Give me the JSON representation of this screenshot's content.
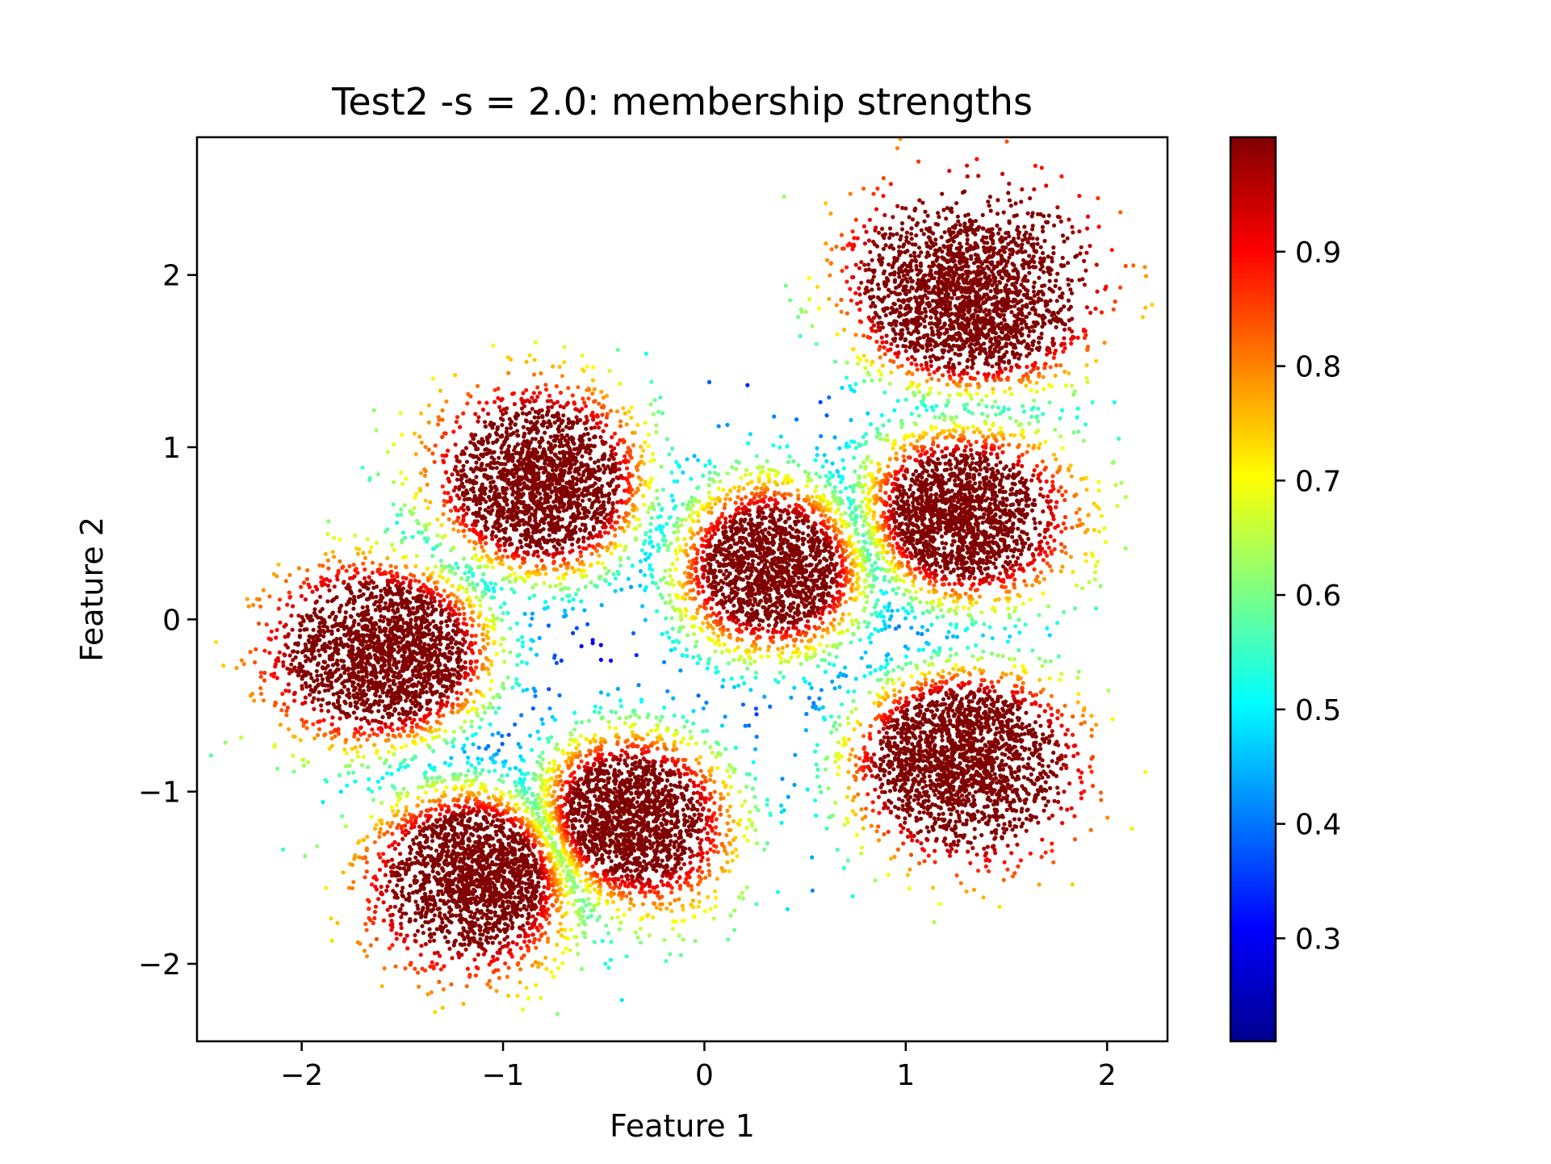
{
  "chart_data": {
    "type": "scatter",
    "title": "Test2 -s = 2.0: membership strengths",
    "xlabel": "Feature 1",
    "ylabel": "Feature 2",
    "xlim": [
      -2.52,
      2.3
    ],
    "ylim": [
      -2.45,
      2.8
    ],
    "xticks": [
      -2,
      -1,
      0,
      1,
      2
    ],
    "xtick_labels": [
      "−2",
      "−1",
      "0",
      "1",
      "2"
    ],
    "yticks": [
      -2,
      -1,
      0,
      1,
      2
    ],
    "ytick_labels": [
      "−2",
      "−1",
      "0",
      "1",
      "2"
    ],
    "grid": false,
    "colormap": "jet",
    "color_by": "membership strength",
    "colorbar": {
      "range": [
        0.21,
        1.0
      ],
      "ticks": [
        0.3,
        0.4,
        0.5,
        0.6,
        0.7,
        0.8,
        0.9
      ],
      "tick_labels": [
        "0.3",
        "0.4",
        "0.5",
        "0.6",
        "0.7",
        "0.8",
        "0.9"
      ]
    },
    "clusters": [
      {
        "center": [
          -1.55,
          -0.2
        ],
        "spread": 0.28
      },
      {
        "center": [
          -0.8,
          0.75
        ],
        "spread": 0.28
      },
      {
        "center": [
          1.3,
          1.85
        ],
        "spread": 0.28
      },
      {
        "center": [
          0.35,
          0.3
        ],
        "spread": 0.28
      },
      {
        "center": [
          1.25,
          0.6
        ],
        "spread": 0.28
      },
      {
        "center": [
          1.25,
          -0.8
        ],
        "spread": 0.28
      },
      {
        "center": [
          -1.1,
          -1.45
        ],
        "spread": 0.28
      },
      {
        "center": [
          -0.4,
          -1.15
        ],
        "spread": 0.28
      }
    ],
    "points_per_cluster": 2200
  }
}
